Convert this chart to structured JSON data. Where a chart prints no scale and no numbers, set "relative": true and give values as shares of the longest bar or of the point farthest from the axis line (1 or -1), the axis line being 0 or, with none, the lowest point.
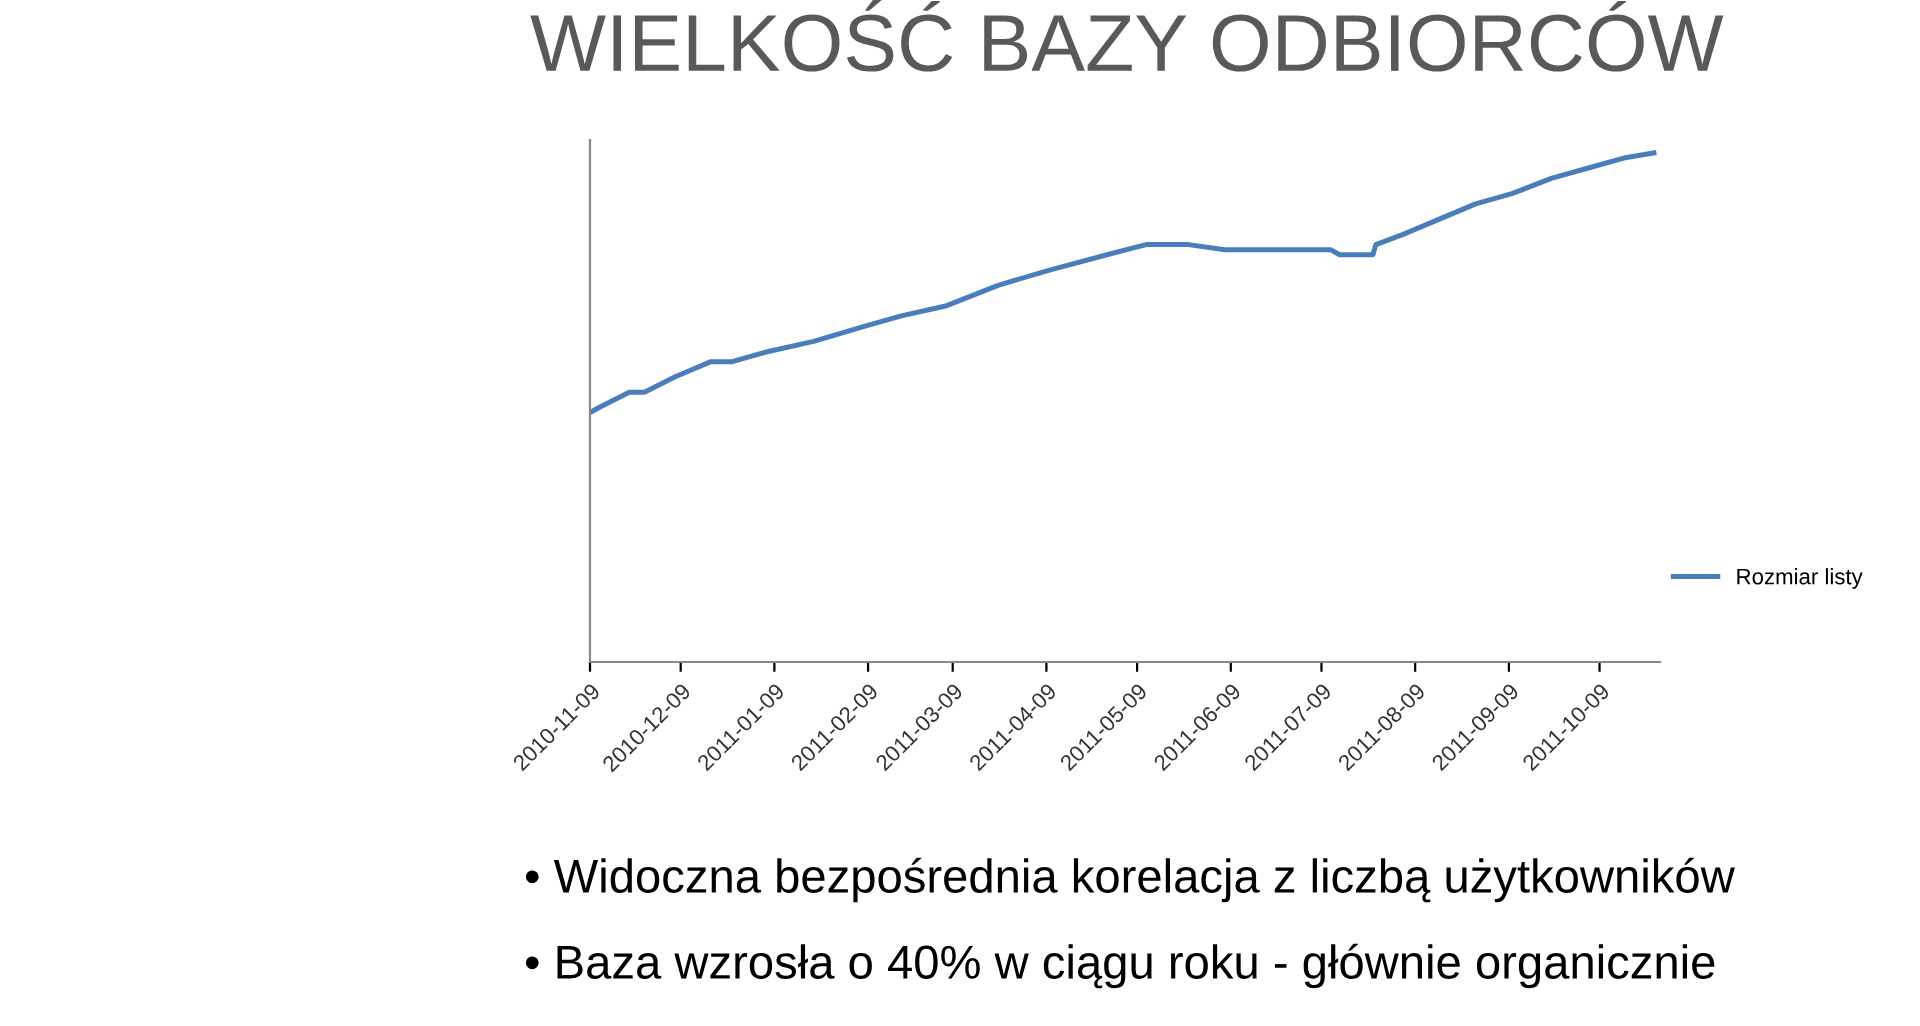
{
  "chart_data": {
    "type": "line",
    "title": "WIELKOŚĆ BAZY ODBIORCÓW",
    "relative": true,
    "legend": "right",
    "x": [
      "2010-11-09",
      "2010-11-12",
      "2010-11-22",
      "2010-11-27",
      "2010-12-07",
      "2010-12-19",
      "2010-12-26",
      "2011-01-07",
      "2011-01-22",
      "2011-02-08",
      "2011-02-20",
      "2011-03-07",
      "2011-03-24",
      "2011-04-10",
      "2011-04-29",
      "2011-05-12",
      "2011-05-26",
      "2011-06-07",
      "2011-06-25",
      "2011-07-12",
      "2011-07-15",
      "2011-07-26",
      "2011-07-27",
      "2011-08-05",
      "2011-08-17",
      "2011-08-29",
      "2011-09-10",
      "2011-09-23",
      "2011-10-05",
      "2011-10-17",
      "2011-10-27"
    ],
    "series": [
      {
        "name": "Rozmiar listy",
        "color": "#4a7ebb",
        "values": [
          0.49,
          0.5,
          0.53,
          0.53,
          0.56,
          0.59,
          0.59,
          0.61,
          0.63,
          0.66,
          0.68,
          0.7,
          0.74,
          0.77,
          0.8,
          0.82,
          0.82,
          0.81,
          0.81,
          0.81,
          0.8,
          0.8,
          0.82,
          0.84,
          0.87,
          0.9,
          0.92,
          0.95,
          0.97,
          0.99,
          1.0
        ]
      }
    ],
    "xlim": [
      "2010-11-09",
      "2011-10-29"
    ],
    "xticks": [
      "2010-11-09",
      "2010-12-09",
      "2011-01-09",
      "2011-02-09",
      "2011-03-09",
      "2011-04-09",
      "2011-05-09",
      "2011-06-09",
      "2011-07-09",
      "2011-08-09",
      "2011-09-09",
      "2011-10-09"
    ],
    "annotations": [
      "• Widoczna bezpośrednia korelacja z liczbą użytkowników",
      "• Baza wzrosła o 40% w ciągu roku - głównie organicznie"
    ]
  }
}
